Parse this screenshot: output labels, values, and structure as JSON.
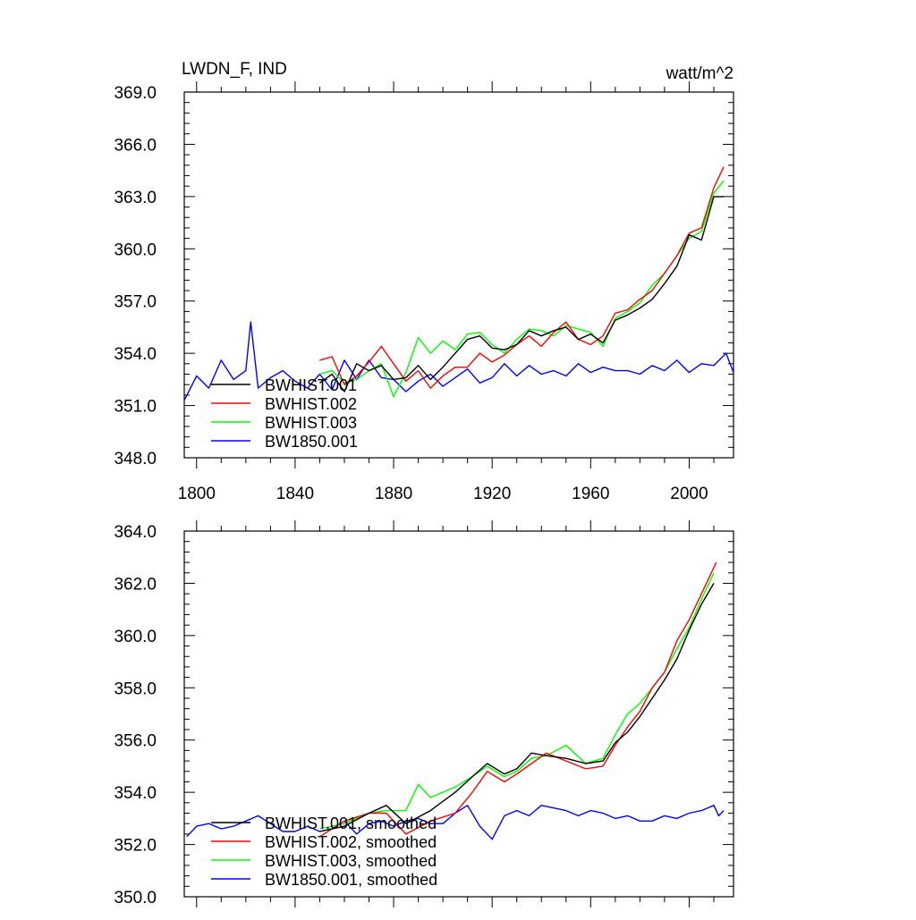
{
  "chart_data": [
    {
      "type": "line",
      "title_left": "LWDN_F, IND",
      "title_right": "watt/m^2",
      "xlim": [
        1795,
        2018
      ],
      "ylim": [
        348.0,
        369.0
      ],
      "xticks": [
        1800,
        1840,
        1880,
        1920,
        1960,
        2000
      ],
      "yticks": [
        348.0,
        351.0,
        354.0,
        357.0,
        360.0,
        363.0,
        366.0,
        369.0
      ],
      "yticklabels": [
        "348.0",
        "351.0",
        "354.0",
        "357.0",
        "360.0",
        "363.0",
        "366.0",
        "369.0"
      ],
      "xticklabels": [
        "1800",
        "1840",
        "1880",
        "1920",
        "1960",
        "2000"
      ],
      "legend_position": "bottom-left",
      "series": [
        {
          "name": "BWHIST.001",
          "color": "#000000",
          "x": [
            1850,
            1855,
            1860,
            1865,
            1870,
            1875,
            1880,
            1885,
            1890,
            1895,
            1900,
            1905,
            1910,
            1915,
            1920,
            1925,
            1930,
            1935,
            1940,
            1945,
            1950,
            1955,
            1960,
            1965,
            1970,
            1975,
            1980,
            1985,
            1990,
            1995,
            2000,
            2005,
            2010,
            2014
          ],
          "y": [
            352.3,
            352.8,
            351.8,
            353.4,
            353.0,
            353.3,
            352.5,
            352.6,
            353.3,
            352.5,
            353.2,
            354.0,
            354.8,
            355.0,
            354.3,
            354.2,
            354.5,
            355.3,
            355.0,
            355.3,
            355.5,
            354.8,
            355.1,
            354.6,
            355.9,
            356.2,
            356.6,
            357.1,
            358.0,
            359.0,
            360.8,
            360.5,
            363.0,
            363.0
          ]
        },
        {
          "name": "BWHIST.002",
          "color": "#ff0000",
          "x": [
            1850,
            1855,
            1860,
            1865,
            1870,
            1875,
            1880,
            1885,
            1890,
            1895,
            1900,
            1905,
            1910,
            1915,
            1920,
            1925,
            1930,
            1935,
            1940,
            1945,
            1950,
            1955,
            1960,
            1965,
            1970,
            1975,
            1980,
            1985,
            1990,
            1995,
            2000,
            2005,
            2010,
            2014
          ],
          "y": [
            353.6,
            353.8,
            352.2,
            352.7,
            353.5,
            354.4,
            353.4,
            352.4,
            353.0,
            352.0,
            352.7,
            353.2,
            353.2,
            354.0,
            353.5,
            353.9,
            354.5,
            355.0,
            354.4,
            355.2,
            355.8,
            354.8,
            354.5,
            355.0,
            356.3,
            356.5,
            357.1,
            357.6,
            358.6,
            359.6,
            360.9,
            361.2,
            363.5,
            364.7
          ]
        },
        {
          "name": "BWHIST.003",
          "color": "#00ff00",
          "x": [
            1850,
            1855,
            1860,
            1865,
            1870,
            1875,
            1880,
            1885,
            1890,
            1895,
            1900,
            1905,
            1910,
            1915,
            1920,
            1925,
            1930,
            1935,
            1940,
            1945,
            1950,
            1955,
            1960,
            1965,
            1970,
            1975,
            1980,
            1985,
            1990,
            1995,
            2000,
            2005,
            2010,
            2014
          ],
          "y": [
            352.8,
            353.0,
            352.3,
            352.5,
            353.0,
            353.4,
            351.5,
            352.9,
            354.9,
            354.0,
            354.7,
            354.2,
            355.1,
            355.2,
            354.5,
            354.0,
            354.8,
            355.4,
            355.3,
            355.0,
            355.6,
            355.4,
            355.2,
            354.4,
            356.0,
            356.4,
            356.9,
            357.9,
            358.6,
            359.6,
            360.6,
            361.0,
            363.2,
            363.9
          ]
        },
        {
          "name": "BW1850.001",
          "color": "#0000ff",
          "x": [
            1795,
            1800,
            1805,
            1810,
            1815,
            1820,
            1822,
            1825,
            1830,
            1835,
            1840,
            1845,
            1850,
            1855,
            1860,
            1865,
            1870,
            1875,
            1880,
            1885,
            1890,
            1895,
            1900,
            1905,
            1910,
            1915,
            1920,
            1925,
            1930,
            1935,
            1940,
            1945,
            1950,
            1955,
            1960,
            1965,
            1970,
            1975,
            1980,
            1985,
            1990,
            1995,
            2000,
            2005,
            2010,
            2015,
            2018
          ],
          "y": [
            351.3,
            352.7,
            352.0,
            353.6,
            352.5,
            353.0,
            355.8,
            352.0,
            352.6,
            353.0,
            352.4,
            352.0,
            352.8,
            351.9,
            353.6,
            352.5,
            353.6,
            352.6,
            352.5,
            351.8,
            352.4,
            352.8,
            352.1,
            352.6,
            353.1,
            352.3,
            352.6,
            353.4,
            352.7,
            353.3,
            352.8,
            353.0,
            352.7,
            353.4,
            352.9,
            353.2,
            353.0,
            353.0,
            352.8,
            353.3,
            353.0,
            353.6,
            352.9,
            353.4,
            353.3,
            354.0,
            352.9
          ]
        }
      ]
    },
    {
      "type": "line",
      "xlim": [
        1795,
        2018
      ],
      "ylim": [
        350.0,
        364.0
      ],
      "xticks": [
        1800,
        1840,
        1880,
        1920,
        1960,
        2000
      ],
      "yticks": [
        350.0,
        352.0,
        354.0,
        356.0,
        358.0,
        360.0,
        362.0,
        364.0
      ],
      "yticklabels": [
        "350.0",
        "352.0",
        "354.0",
        "356.0",
        "358.0",
        "360.0",
        "362.0",
        "364.0"
      ],
      "legend_position": "bottom-left",
      "series": [
        {
          "name": "BWHIST.001, smoothed",
          "color": "#000000",
          "x": [
            1850,
            1860,
            1870,
            1877,
            1885,
            1895,
            1905,
            1912,
            1918,
            1925,
            1930,
            1936,
            1942,
            1950,
            1958,
            1965,
            1970,
            1975,
            1980,
            1985,
            1990,
            1995,
            2000,
            2005,
            2010
          ],
          "y": [
            352.5,
            352.7,
            353.2,
            353.5,
            352.8,
            353.3,
            354.0,
            354.6,
            355.1,
            354.7,
            354.9,
            355.5,
            355.4,
            355.3,
            355.1,
            355.2,
            355.9,
            356.3,
            356.9,
            357.6,
            358.3,
            359.1,
            360.2,
            361.2,
            362.0
          ]
        },
        {
          "name": "BWHIST.002, smoothed",
          "color": "#ff0000",
          "x": [
            1850,
            1860,
            1870,
            1877,
            1885,
            1895,
            1905,
            1912,
            1918,
            1925,
            1930,
            1936,
            1942,
            1950,
            1958,
            1965,
            1970,
            1975,
            1980,
            1985,
            1990,
            1995,
            2000,
            2005,
            2011
          ],
          "y": [
            352.3,
            352.9,
            353.2,
            353.2,
            352.4,
            352.9,
            353.2,
            354.0,
            354.8,
            354.4,
            354.7,
            355.1,
            355.5,
            355.2,
            354.9,
            355.0,
            355.8,
            356.5,
            357.1,
            358.0,
            358.6,
            359.8,
            360.6,
            361.6,
            362.8
          ]
        },
        {
          "name": "BWHIST.003, smoothed",
          "color": "#00ff00",
          "x": [
            1850,
            1860,
            1870,
            1877,
            1885,
            1890,
            1895,
            1905,
            1912,
            1918,
            1925,
            1930,
            1936,
            1942,
            1950,
            1958,
            1965,
            1970,
            1975,
            1980,
            1985,
            1990,
            1995,
            2000,
            2005,
            2010
          ],
          "y": [
            352.6,
            352.8,
            353.2,
            353.3,
            353.3,
            354.3,
            353.8,
            354.2,
            354.6,
            355.0,
            354.6,
            354.8,
            355.3,
            355.4,
            355.8,
            355.1,
            355.3,
            356.2,
            357.0,
            357.4,
            358.0,
            358.6,
            359.5,
            360.3,
            361.4,
            362.4
          ]
        },
        {
          "name": "BW1850.001, smoothed",
          "color": "#0000ff",
          "x": [
            1796,
            1800,
            1805,
            1810,
            1815,
            1820,
            1825,
            1830,
            1835,
            1840,
            1845,
            1850,
            1855,
            1860,
            1865,
            1870,
            1875,
            1880,
            1885,
            1890,
            1895,
            1900,
            1905,
            1910,
            1915,
            1920,
            1925,
            1930,
            1935,
            1940,
            1945,
            1950,
            1955,
            1960,
            1965,
            1970,
            1975,
            1980,
            1985,
            1990,
            1995,
            2000,
            2005,
            2010,
            2012,
            2014
          ],
          "y": [
            352.3,
            352.7,
            352.8,
            352.6,
            352.7,
            352.9,
            353.1,
            352.8,
            352.5,
            352.5,
            352.7,
            352.5,
            352.6,
            352.9,
            352.4,
            352.8,
            352.9,
            352.7,
            352.9,
            353.0,
            352.8,
            352.8,
            353.2,
            353.5,
            352.7,
            352.2,
            353.1,
            353.3,
            353.1,
            353.5,
            353.4,
            353.3,
            353.1,
            353.3,
            353.2,
            353.0,
            353.1,
            352.9,
            352.9,
            353.1,
            353.0,
            353.2,
            353.3,
            353.5,
            353.1,
            353.3
          ]
        }
      ]
    }
  ]
}
